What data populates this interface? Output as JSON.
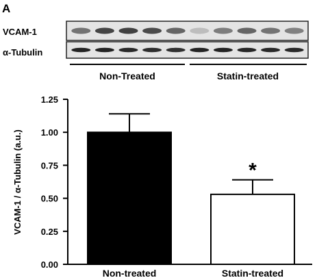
{
  "panel_label": "A",
  "blot": {
    "rows": [
      {
        "label": "VCAM-1",
        "band_intensity": [
          0.55,
          0.78,
          0.8,
          0.75,
          0.62,
          0.18,
          0.5,
          0.62,
          0.55,
          0.48
        ]
      },
      {
        "label": "α-Tubulin",
        "band_intensity": [
          0.95,
          0.95,
          0.92,
          0.9,
          0.88,
          0.95,
          0.95,
          0.93,
          0.92,
          0.92
        ]
      }
    ],
    "groups": [
      "Non-Treated",
      "Statin-treated"
    ],
    "lanes_per_group": 5
  },
  "chart_data": {
    "type": "bar",
    "categories": [
      "Non-treated",
      "Statin-treated"
    ],
    "values": [
      1.0,
      0.53
    ],
    "error": [
      0.14,
      0.11
    ],
    "ylabel": "VCAM-1 / α-Tubulin (a.u.)",
    "ylim": [
      0,
      1.25
    ],
    "yticks": [
      "0.00",
      "0.25",
      "0.50",
      "0.75",
      "1.00",
      "1.25"
    ],
    "bar_colors": [
      "#000000",
      "#ffffff"
    ],
    "significance": [
      {
        "category": "Statin-treated",
        "mark": "*"
      }
    ],
    "grid": false
  }
}
